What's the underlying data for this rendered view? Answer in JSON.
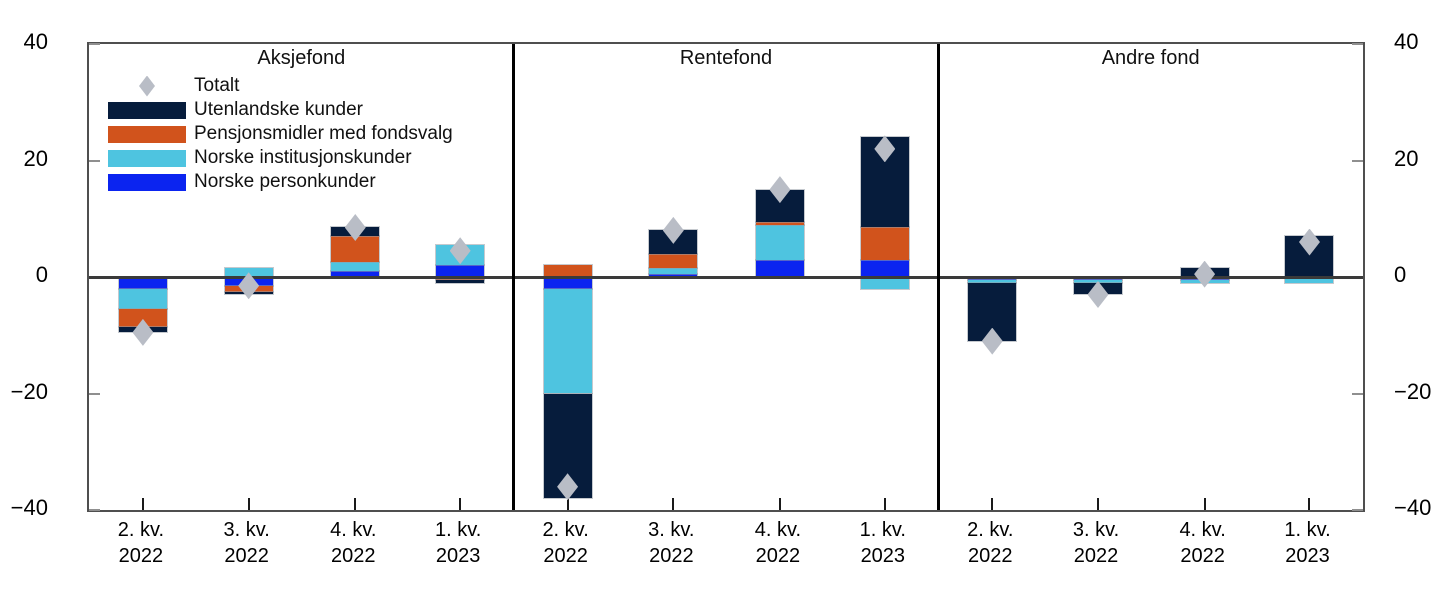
{
  "colors": {
    "foreign": "#061c3c",
    "pension": "#d1531c",
    "institutional": "#4ec4e0",
    "personal": "#0b24f0",
    "total_marker": "#b9bdc6",
    "zero_line": "#3a3a3a",
    "panel_separator": "#000000",
    "frame": "#4f4f4f"
  },
  "legend": [
    {
      "key": "total",
      "label": "Totalt",
      "marker": "diamond"
    },
    {
      "key": "foreign",
      "label": "Utenlandske kunder",
      "marker": "swatch"
    },
    {
      "key": "pension",
      "label": "Pensjonsmidler med fondsvalg",
      "marker": "swatch"
    },
    {
      "key": "institutional",
      "label": "Norske institusjonskunder",
      "marker": "swatch"
    },
    {
      "key": "personal",
      "label": "Norske personkunder",
      "marker": "swatch"
    }
  ],
  "y_axis": {
    "tick_values": [
      40,
      20,
      0,
      -20,
      -40
    ],
    "tick_labels": [
      "40",
      "20",
      "0",
      "−20",
      "−40"
    ]
  },
  "chart_data": {
    "type": "bar",
    "stacked": true,
    "ylim": [
      -40,
      40
    ],
    "grid": false,
    "legend_position": "top-left-inside-first-panel",
    "categories": [
      [
        "2. kv.",
        "2022"
      ],
      [
        "3. kv.",
        "2022"
      ],
      [
        "4. kv.",
        "2022"
      ],
      [
        "1. kv.",
        "2023"
      ]
    ],
    "stack_order_note": "stacked outward from zero in series order: personal, institutional, pension, foreign; diamond marker = total",
    "panels": [
      {
        "title": "Aksjefond",
        "series": [
          {
            "key": "personal",
            "name": "Norske personkunder",
            "values": [
              -2,
              -1.5,
              1,
              2
            ]
          },
          {
            "key": "institutional",
            "name": "Norske institusjonskunder",
            "values": [
              -3.5,
              1.5,
              1.5,
              3.5
            ]
          },
          {
            "key": "pension",
            "name": "Pensjonsmidler med fondsvalg",
            "values": [
              -3,
              -1,
              4.5,
              -0.5
            ]
          },
          {
            "key": "foreign",
            "name": "Utenlandske kunder",
            "values": [
              -1,
              -0.5,
              1.5,
              -0.5
            ]
          }
        ],
        "totals": [
          -9.5,
          -1.5,
          8.5,
          4.5
        ]
      },
      {
        "title": "Rentefond",
        "series": [
          {
            "key": "personal",
            "name": "Norske personkunder",
            "values": [
              -2,
              0.5,
              3,
              3
            ]
          },
          {
            "key": "institutional",
            "name": "Norske institusjonskunder",
            "values": [
              -18,
              1,
              6,
              -2
            ]
          },
          {
            "key": "pension",
            "name": "Pensjonsmidler med fondsvalg",
            "values": [
              2,
              2.5,
              0.5,
              5.5
            ]
          },
          {
            "key": "foreign",
            "name": "Utenlandske kunder",
            "values": [
              -18,
              4,
              5.5,
              15.5
            ]
          }
        ],
        "totals": [
          -36,
          8,
          15,
          22
        ]
      },
      {
        "title": "Andre fond",
        "series": [
          {
            "key": "personal",
            "name": "Norske personkunder",
            "values": [
              -0.5,
              -0.5,
              -0.5,
              0
            ]
          },
          {
            "key": "institutional",
            "name": "Norske institusjonskunder",
            "values": [
              -0.5,
              -0.5,
              -0.5,
              -1
            ]
          },
          {
            "key": "pension",
            "name": "Pensjonsmidler med fondsvalg",
            "values": [
              0,
              0,
              0,
              0
            ]
          },
          {
            "key": "foreign",
            "name": "Utenlandske kunder",
            "values": [
              -10,
              -2,
              1.5,
              7
            ]
          }
        ],
        "totals": [
          -11,
          -3,
          0.5,
          6
        ]
      }
    ]
  }
}
